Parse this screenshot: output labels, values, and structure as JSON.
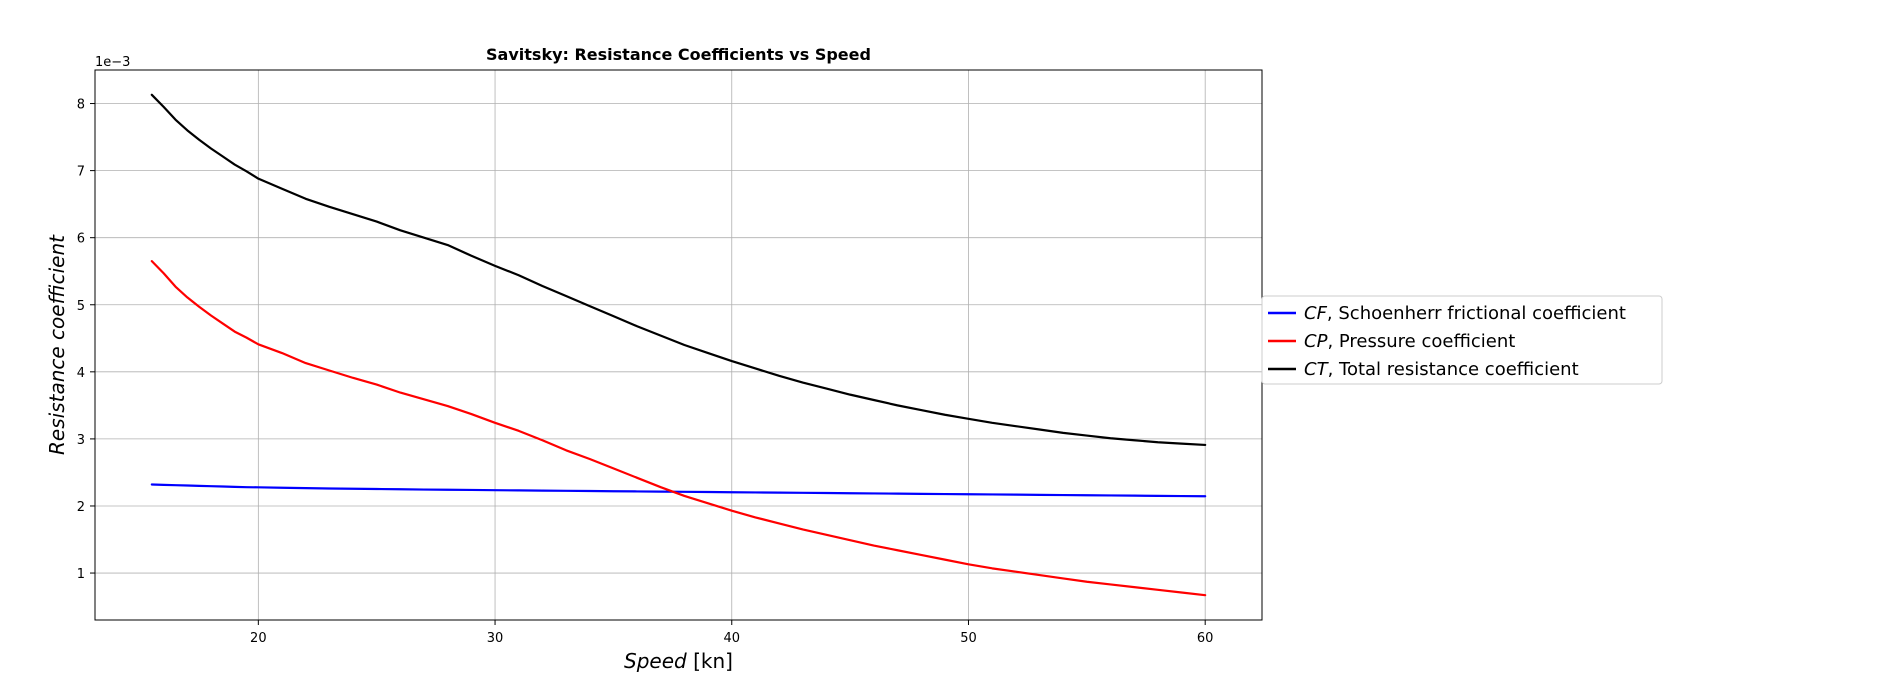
{
  "chart_data": {
    "type": "line",
    "title": "Savitsky: Resistance Coefficients vs Speed",
    "xlabel_italic": "Speed",
    "xlabel_unit": " [kn]",
    "ylabel": "Resistance coefficient",
    "y_offset_text": "1e−3",
    "xlim": [
      13.1,
      62.4
    ],
    "ylim": [
      0.3,
      8.5
    ],
    "x_ticks": [
      20,
      30,
      40,
      50,
      60
    ],
    "y_ticks": [
      1,
      2,
      3,
      4,
      5,
      6,
      7,
      8
    ],
    "x_tick_labels": [
      "20",
      "30",
      "40",
      "50",
      "60"
    ],
    "y_tick_labels": [
      "1",
      "2",
      "3",
      "4",
      "5",
      "6",
      "7",
      "8"
    ],
    "grid": true,
    "legend_placement": "outside-right",
    "x": [
      15.5,
      16,
      16.5,
      17,
      17.5,
      18,
      18.5,
      19,
      19.5,
      20,
      21,
      22,
      23,
      24,
      25,
      26,
      27,
      28,
      29,
      30,
      31,
      32,
      33,
      34,
      35,
      36,
      37,
      38,
      39,
      40,
      41,
      42,
      43,
      44,
      45,
      46,
      47,
      48,
      49,
      50,
      51,
      52,
      53,
      54,
      55,
      56,
      57,
      58,
      59,
      60
    ],
    "series": [
      {
        "name_italic": "CF",
        "name_rest": ", Schoenherr frictional coefficient",
        "color": "#0000ff",
        "values": [
          2.32,
          2.315,
          2.31,
          2.305,
          2.3,
          2.295,
          2.29,
          2.285,
          2.28,
          2.278,
          2.272,
          2.266,
          2.261,
          2.257,
          2.253,
          2.249,
          2.245,
          2.242,
          2.239,
          2.235,
          2.232,
          2.229,
          2.226,
          2.223,
          2.22,
          2.217,
          2.214,
          2.211,
          2.208,
          2.205,
          2.202,
          2.199,
          2.196,
          2.193,
          2.19,
          2.187,
          2.184,
          2.181,
          2.178,
          2.175,
          2.172,
          2.169,
          2.166,
          2.163,
          2.16,
          2.157,
          2.154,
          2.151,
          2.148,
          2.145
        ]
      },
      {
        "name_italic": "CP",
        "name_rest": ", Pressure coefficient",
        "color": "#ff0000",
        "values": [
          5.65,
          5.47,
          5.27,
          5.11,
          4.97,
          4.84,
          4.72,
          4.6,
          4.51,
          4.41,
          4.28,
          4.13,
          4.02,
          3.91,
          3.81,
          3.69,
          3.59,
          3.49,
          3.37,
          3.24,
          3.12,
          2.98,
          2.83,
          2.7,
          2.56,
          2.42,
          2.28,
          2.15,
          2.04,
          1.93,
          1.83,
          1.74,
          1.65,
          1.57,
          1.49,
          1.41,
          1.34,
          1.27,
          1.2,
          1.13,
          1.07,
          1.02,
          0.97,
          0.92,
          0.87,
          0.83,
          0.79,
          0.75,
          0.71,
          0.67
        ]
      },
      {
        "name_italic": "CT",
        "name_rest": ", Total resistance coefficient",
        "color": "#000000",
        "values": [
          8.13,
          7.95,
          7.76,
          7.6,
          7.46,
          7.33,
          7.21,
          7.09,
          6.99,
          6.88,
          6.73,
          6.58,
          6.46,
          6.35,
          6.24,
          6.11,
          6.0,
          5.89,
          5.73,
          5.58,
          5.44,
          5.28,
          5.13,
          4.98,
          4.83,
          4.68,
          4.54,
          4.4,
          4.28,
          4.16,
          4.05,
          3.94,
          3.84,
          3.75,
          3.66,
          3.58,
          3.5,
          3.43,
          3.36,
          3.3,
          3.24,
          3.19,
          3.14,
          3.09,
          3.05,
          3.01,
          2.98,
          2.95,
          2.93,
          2.91
        ]
      }
    ]
  }
}
